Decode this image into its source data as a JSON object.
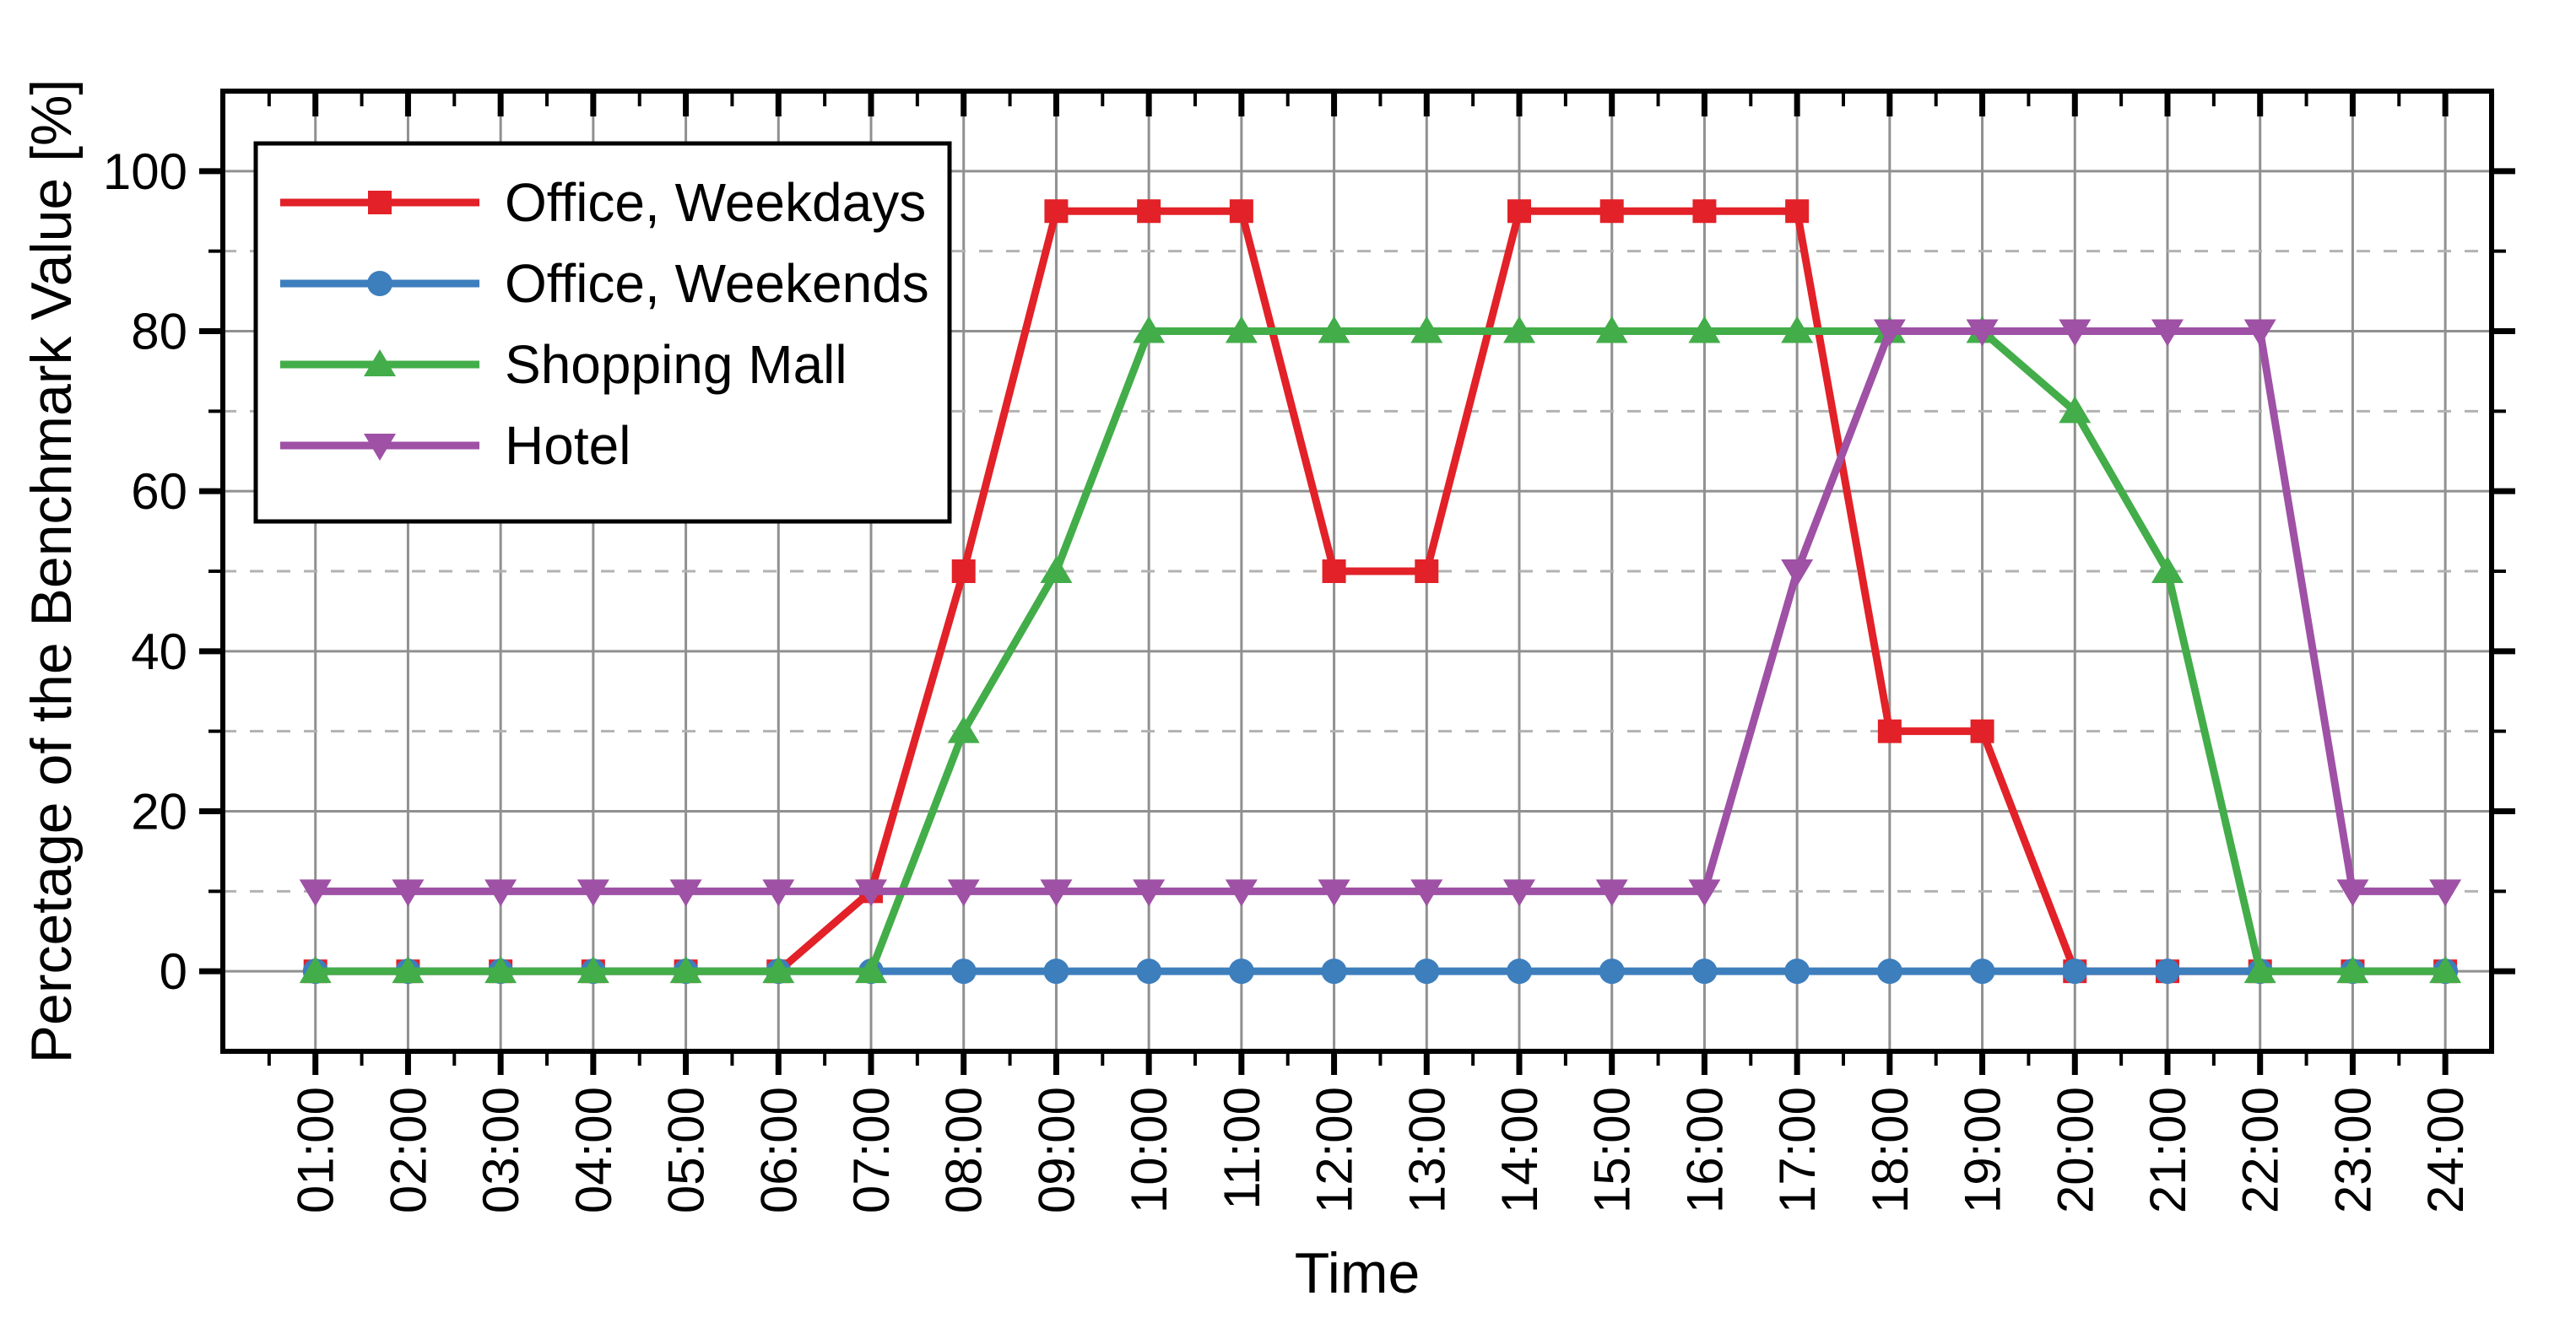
{
  "figure": {
    "background": "#ffffff"
  },
  "chart_data": {
    "type": "line",
    "title": "",
    "xlabel": "Time",
    "ylabel": "Percetage of the Benchmark Value [%]",
    "categories": [
      "01:00",
      "02:00",
      "03:00",
      "04:00",
      "05:00",
      "06:00",
      "07:00",
      "08:00",
      "09:00",
      "10:00",
      "11:00",
      "12:00",
      "13:00",
      "14:00",
      "15:00",
      "16:00",
      "17:00",
      "18:00",
      "19:00",
      "20:00",
      "21:00",
      "22:00",
      "23:00",
      "24:00"
    ],
    "x_values": [
      1,
      2,
      3,
      4,
      5,
      6,
      7,
      8,
      9,
      10,
      11,
      12,
      13,
      14,
      15,
      16,
      17,
      18,
      19,
      20,
      21,
      22,
      23,
      24
    ],
    "xlim": [
      0,
      24.5
    ],
    "ylim": [
      -10,
      110
    ],
    "y_major_ticks": [
      0,
      20,
      40,
      60,
      80,
      100
    ],
    "y_minor_gridlines": [
      10,
      30,
      50,
      70,
      90
    ],
    "grid": {
      "vertical_major": true,
      "horizontal_major": true,
      "horizontal_minor_dashed": true
    },
    "legend_position": "top-left",
    "series": [
      {
        "name": "Office, Weekdays",
        "color": "#e22128",
        "marker": "square",
        "values": [
          0,
          0,
          0,
          0,
          0,
          0,
          10,
          50,
          95,
          95,
          95,
          50,
          50,
          95,
          95,
          95,
          95,
          30,
          30,
          0,
          0,
          0,
          0,
          0
        ]
      },
      {
        "name": "Office, Weekends",
        "color": "#3d7ebd",
        "marker": "circle",
        "values": [
          0,
          0,
          0,
          0,
          0,
          0,
          0,
          0,
          0,
          0,
          0,
          0,
          0,
          0,
          0,
          0,
          0,
          0,
          0,
          0,
          0,
          0,
          0,
          0
        ]
      },
      {
        "name": "Shopping Mall",
        "color": "#43ad49",
        "marker": "triangle-up",
        "values": [
          0,
          0,
          0,
          0,
          0,
          0,
          0,
          30,
          50,
          80,
          80,
          80,
          80,
          80,
          80,
          80,
          80,
          80,
          80,
          70,
          50,
          0,
          0,
          0
        ]
      },
      {
        "name": "Hotel",
        "color": "#9e51a5",
        "marker": "triangle-down",
        "values": [
          10,
          10,
          10,
          10,
          10,
          10,
          10,
          10,
          10,
          10,
          10,
          10,
          10,
          10,
          10,
          10,
          50,
          80,
          80,
          80,
          80,
          80,
          10,
          10
        ]
      }
    ]
  },
  "style_colors": {
    "grid_major": "#909090",
    "grid_minor": "#b2b2b2",
    "axis_frame": "#000000",
    "legend_border": "#000000",
    "legend_background": "#ffffff"
  }
}
